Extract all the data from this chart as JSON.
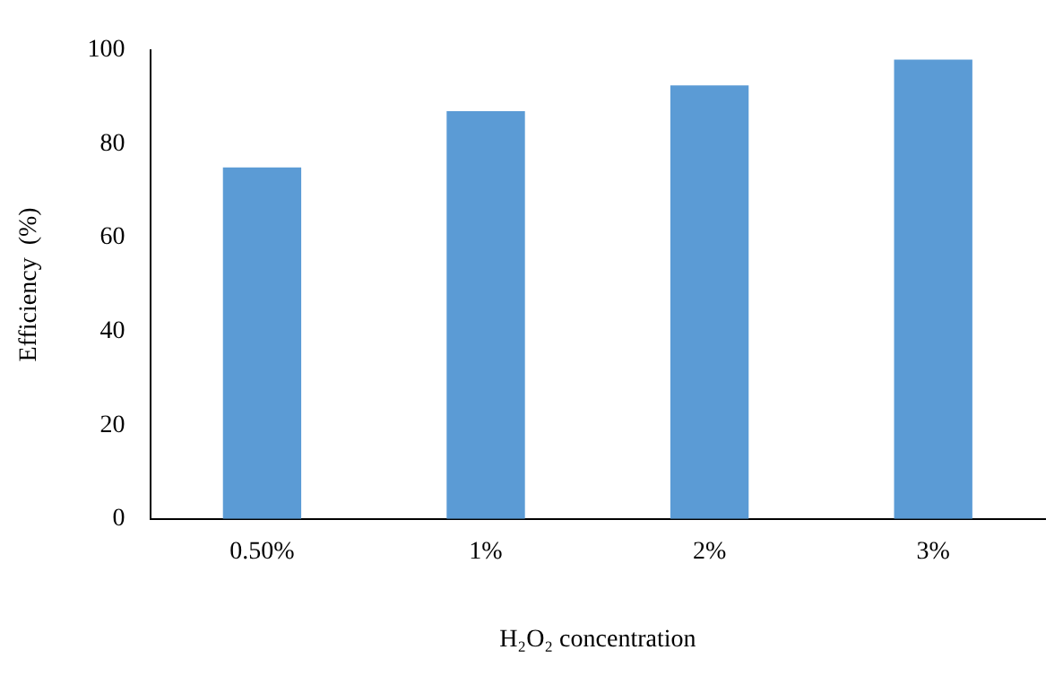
{
  "chart_data": {
    "type": "bar",
    "xlabel": "H₂O₂ concentration",
    "ylabel": "Efficiency  (%)",
    "categories": [
      "0.50%",
      "1%",
      "2%",
      "3%"
    ],
    "values": [
      75,
      87,
      92.5,
      98
    ],
    "color": "#5b9bd5",
    "ylim": [
      0,
      100
    ],
    "yticks": [
      0,
      20,
      40,
      60,
      80,
      100
    ],
    "grid": false,
    "legend": false
  }
}
